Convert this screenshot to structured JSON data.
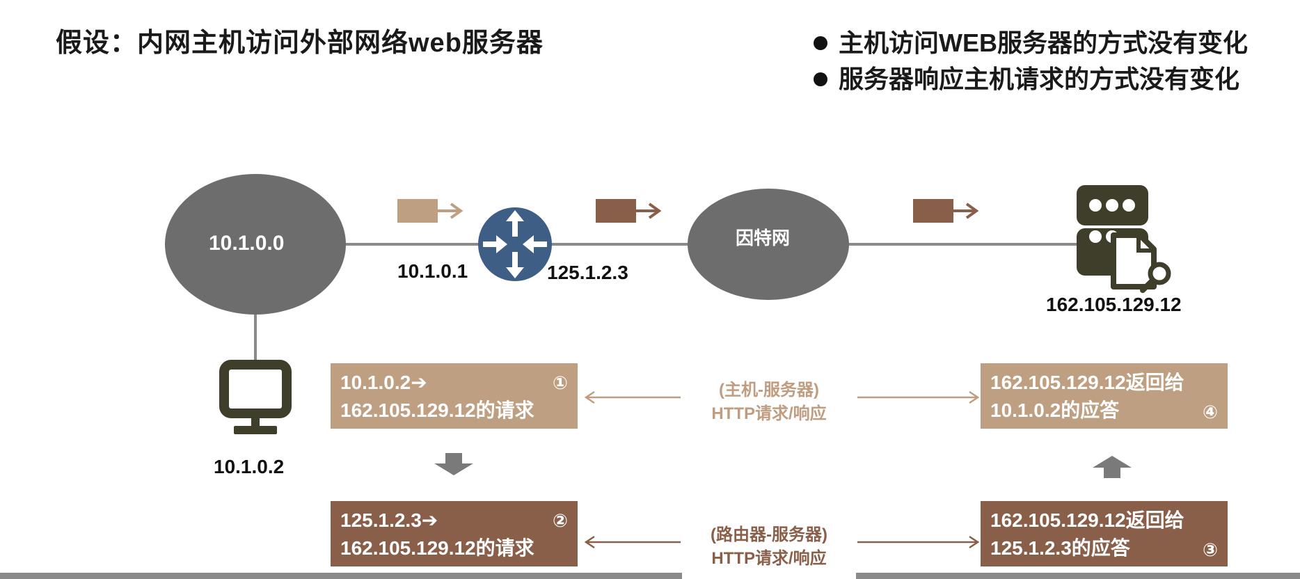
{
  "title": "假设：内网主机访问外部网络web服务器",
  "bullets": [
    "主机访问WEB服务器的方式没有变化",
    "服务器响应主机请求的方式没有变化"
  ],
  "nodes": {
    "lan": "10.1.0.0",
    "internet": "因特网",
    "router_inside_ip": "10.1.0.1",
    "router_outside_ip": "125.1.2.3",
    "server_ip": "162.105.129.12",
    "host_ip": "10.1.0.2"
  },
  "boxes": {
    "b1": {
      "line1": "10.1.0.2➔",
      "line2": "162.105.129.12的请求",
      "num": "①"
    },
    "b2": {
      "line1": "125.1.2.3➔",
      "line2": "162.105.129.12的请求",
      "num": "②"
    },
    "b3": {
      "line1": "162.105.129.12返回给",
      "line2": "125.1.2.3的应答",
      "num": "③"
    },
    "b4": {
      "line1": "162.105.129.12返回给",
      "line2": "10.1.0.2的应答",
      "num": "④"
    }
  },
  "captions": {
    "top": {
      "line1": "(主机-服务器)",
      "line2": "HTTP请求/响应"
    },
    "bottom": {
      "line1": "(路由器-服务器)",
      "line2": "HTTP请求/响应"
    }
  },
  "colors": {
    "light_brown": "#bf9f82",
    "dark_brown": "#8a5f4a",
    "gray_node": "#6d6d6d",
    "router_blue": "#3f5e85",
    "icon_olive": "#3e3e2a"
  }
}
